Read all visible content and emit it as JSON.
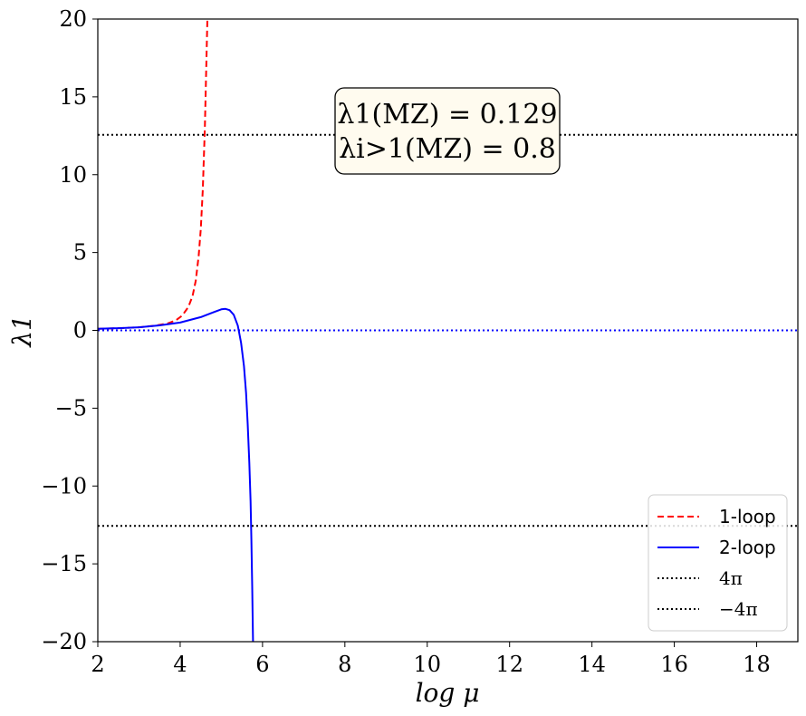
{
  "chart_data": {
    "type": "line",
    "xlabel": "log μ",
    "ylabel": "λ1",
    "xlim": [
      2,
      19
    ],
    "ylim": [
      -20,
      20
    ],
    "x_ticks": [
      2,
      4,
      6,
      8,
      10,
      12,
      14,
      16,
      18
    ],
    "y_ticks": [
      -20,
      -15,
      -10,
      -5,
      0,
      5,
      10,
      15,
      20
    ],
    "x_tick_labels": [
      "2",
      "4",
      "6",
      "8",
      "10",
      "12",
      "14",
      "16",
      "18"
    ],
    "y_tick_labels": [
      "−20",
      "−15",
      "−10",
      "−5",
      "0",
      "5",
      "10",
      "15",
      "20"
    ],
    "grid": false,
    "legend_position": "lower-right",
    "annotation": {
      "line1": "λ1(MZ) = 0.129",
      "line2": "λi>1(MZ) = 0.8"
    },
    "series": [
      {
        "name": "1-loop",
        "color": "#ff0000",
        "style": "dashed",
        "x": [
          2.0,
          2.5,
          3.0,
          3.4,
          3.7,
          3.9,
          4.05,
          4.2,
          4.3,
          4.38,
          4.45,
          4.5,
          4.55,
          4.6,
          4.63,
          4.66
        ],
        "y": [
          0.1,
          0.14,
          0.2,
          0.3,
          0.45,
          0.65,
          0.95,
          1.5,
          2.2,
          3.2,
          4.8,
          6.5,
          9.0,
          13.0,
          16.5,
          20.0
        ]
      },
      {
        "name": "2-loop",
        "color": "#0000ff",
        "style": "solid",
        "x": [
          2.0,
          2.5,
          3.0,
          3.5,
          4.0,
          4.5,
          4.8,
          5.0,
          5.1,
          5.2,
          5.3,
          5.4,
          5.48,
          5.55,
          5.6,
          5.64,
          5.68,
          5.71,
          5.73,
          5.75,
          5.76,
          5.77
        ],
        "y": [
          0.1,
          0.14,
          0.2,
          0.32,
          0.5,
          0.85,
          1.15,
          1.35,
          1.38,
          1.3,
          1.0,
          0.3,
          -0.8,
          -2.3,
          -4.0,
          -6.0,
          -8.5,
          -11.0,
          -13.5,
          -16.5,
          -18.5,
          -20.0
        ]
      },
      {
        "name": "4π",
        "color": "#000000",
        "style": "dotted",
        "x": [
          2,
          19
        ],
        "y": [
          12.566,
          12.566
        ]
      },
      {
        "name": "−4π",
        "color": "#000000",
        "style": "dotted",
        "x": [
          2,
          19
        ],
        "y": [
          -12.566,
          -12.566
        ]
      }
    ],
    "reference_lines": [
      {
        "y": 0,
        "color": "#0000ff",
        "style": "dotted"
      }
    ]
  }
}
